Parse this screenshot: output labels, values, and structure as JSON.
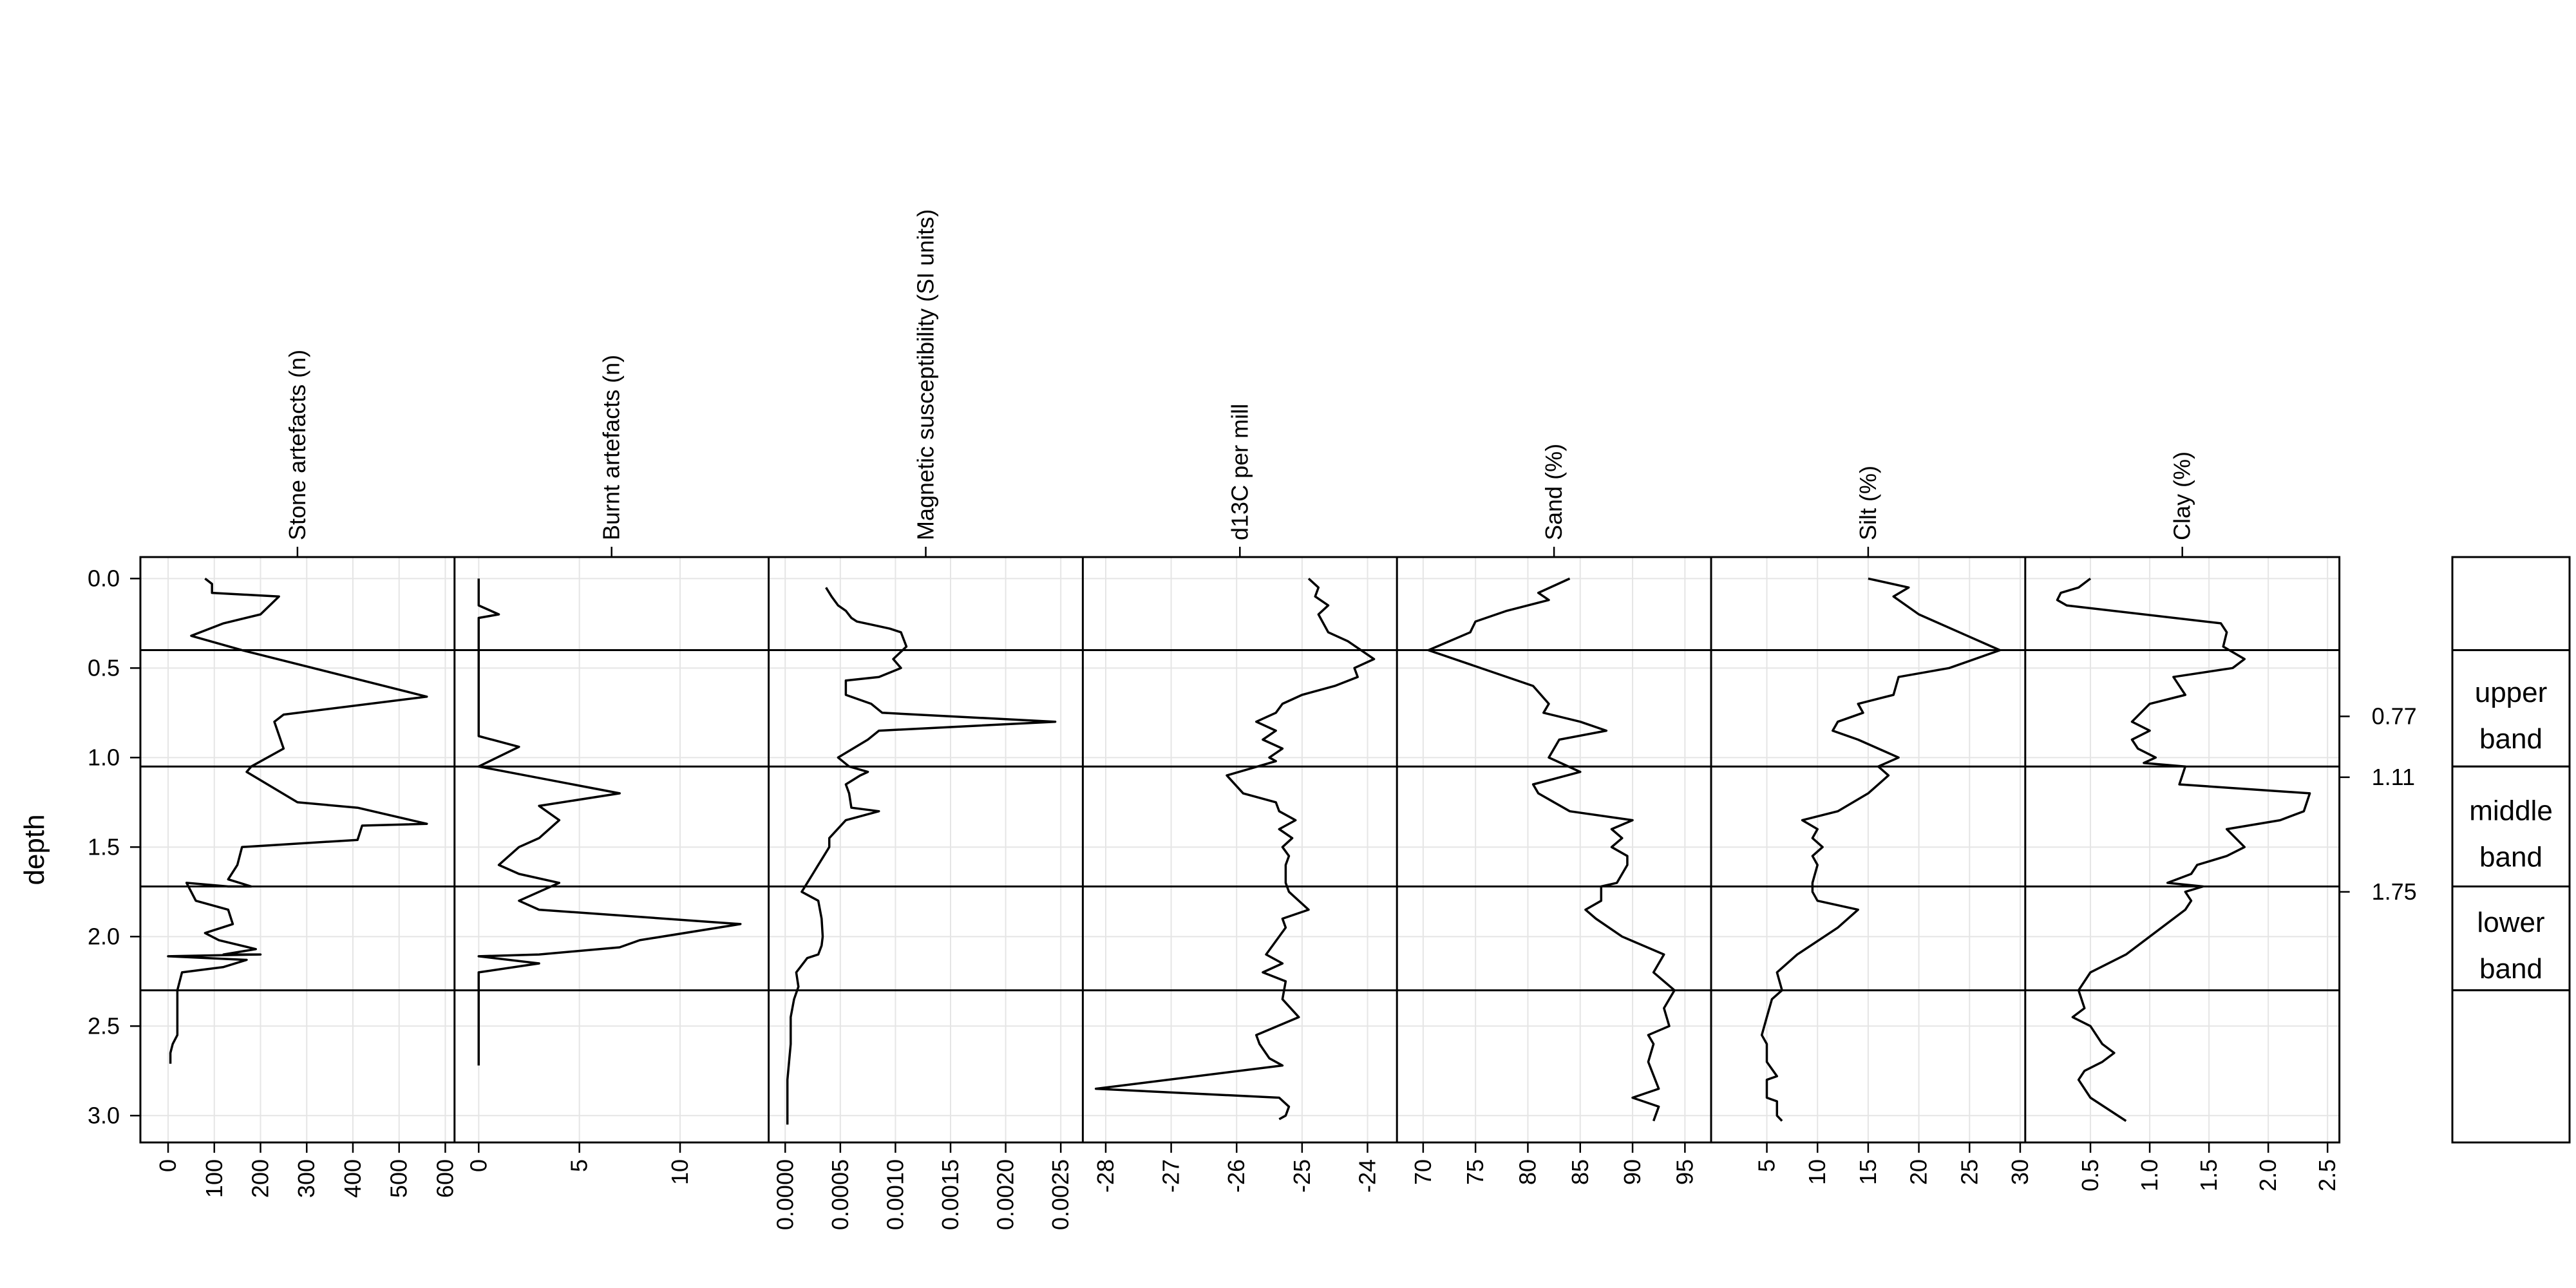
{
  "chart_data": {
    "type": "line",
    "layout": "stratigraphic depth profile (small multiples sharing depth axis)",
    "ylabel": "depth",
    "ylim": [
      3.15,
      -0.12
    ],
    "y_ticks": [
      0.0,
      0.5,
      1.0,
      1.5,
      2.0,
      2.5,
      3.0
    ],
    "y_tick_labels": [
      "0.0",
      "0.5",
      "1.0",
      "1.5",
      "2.0",
      "2.5",
      "3.0"
    ],
    "grid": true,
    "boundaries": [
      0.4,
      1.05,
      1.72,
      2.3
    ],
    "right_axis": {
      "ticks": [
        0.77,
        1.11,
        1.75
      ],
      "tick_labels": [
        "0.77",
        "1.11",
        "1.75"
      ]
    },
    "bands": [
      {
        "label_lines": [
          "",
          ""
        ],
        "from": -0.12,
        "to": 0.4
      },
      {
        "label_lines": [
          "upper",
          "band"
        ],
        "from": 0.4,
        "to": 1.05
      },
      {
        "label_lines": [
          "middle",
          "band"
        ],
        "from": 1.05,
        "to": 1.72
      },
      {
        "label_lines": [
          "lower",
          "band"
        ],
        "from": 1.72,
        "to": 2.3
      },
      {
        "label_lines": [
          "",
          ""
        ],
        "from": 2.3,
        "to": 3.15
      }
    ],
    "panels": [
      {
        "title": "Stone artefacts (n)",
        "xlim": [
          -60,
          620
        ],
        "x_ticks": [
          0,
          100,
          200,
          300,
          400,
          500,
          600
        ],
        "x_tick_labels": [
          "0",
          "100",
          "200",
          "300",
          "400",
          "500",
          "600"
        ],
        "x": [
          80,
          95,
          95,
          240,
          200,
          120,
          50,
          160,
          560,
          250,
          230,
          250,
          180,
          170,
          280,
          410,
          560,
          420,
          410,
          160,
          150,
          130,
          180,
          130,
          40,
          60,
          130,
          140,
          80,
          110,
          190,
          120,
          200,
          0,
          170,
          120,
          30,
          20,
          20,
          20,
          10,
          5,
          5
        ],
        "y": [
          0.0,
          0.03,
          0.08,
          0.1,
          0.2,
          0.25,
          0.32,
          0.4,
          0.66,
          0.76,
          0.8,
          0.95,
          1.05,
          1.08,
          1.25,
          1.28,
          1.37,
          1.38,
          1.46,
          1.5,
          1.6,
          1.68,
          1.72,
          1.72,
          1.7,
          1.8,
          1.85,
          1.93,
          1.98,
          2.02,
          2.07,
          2.1,
          2.1,
          2.11,
          2.13,
          2.17,
          2.2,
          2.3,
          2.45,
          2.55,
          2.6,
          2.65,
          2.71
        ]
      },
      {
        "title": "Burnt artefacts (n)",
        "xlim": [
          -1.2,
          14.4
        ],
        "x_ticks": [
          0,
          5,
          10
        ],
        "x_tick_labels": [
          "0",
          "5",
          "10"
        ],
        "x": [
          0,
          0,
          1,
          0,
          0,
          0,
          0,
          2,
          0,
          7,
          3,
          4,
          3,
          2,
          1,
          2,
          4,
          3,
          2,
          3,
          13,
          8,
          7,
          3,
          0,
          3,
          0,
          0,
          0,
          0
        ],
        "y": [
          0.0,
          0.15,
          0.2,
          0.22,
          0.4,
          0.87,
          0.88,
          0.94,
          1.05,
          1.2,
          1.27,
          1.35,
          1.45,
          1.5,
          1.6,
          1.65,
          1.7,
          1.75,
          1.8,
          1.85,
          1.93,
          2.02,
          2.06,
          2.1,
          2.11,
          2.15,
          2.2,
          2.3,
          2.5,
          2.72
        ]
      },
      {
        "title": "Magnetic susceptibility (SI units)",
        "xlim": [
          -0.00015,
          0.0027
        ],
        "x_ticks": [
          0.0,
          0.0005,
          0.001,
          0.0015,
          0.002,
          0.0025
        ],
        "x_tick_labels": [
          "0.0000",
          "0.0005",
          "0.0010",
          "0.0015",
          "0.0020",
          "0.0025"
        ],
        "x": [
          0.00037,
          0.00042,
          0.00048,
          0.00055,
          0.0006,
          0.00065,
          0.0008,
          0.00095,
          0.00105,
          0.0011,
          0.00098,
          0.00105,
          0.00085,
          0.00055,
          0.00055,
          0.00078,
          0.00088,
          0.00245,
          0.00085,
          0.00075,
          0.00048,
          0.00058,
          0.00075,
          0.00068,
          0.00055,
          0.00058,
          0.0006,
          0.00085,
          0.00055,
          0.0004,
          0.0004,
          0.00035,
          0.0003,
          0.00025,
          0.0002,
          0.00018,
          0.00015,
          0.0003,
          0.00033,
          0.00034,
          0.00033,
          0.0003,
          0.0002,
          0.0001,
          0.00012,
          8e-05,
          5e-05,
          5e-05,
          2e-05,
          2e-05
        ],
        "y": [
          0.05,
          0.1,
          0.15,
          0.18,
          0.22,
          0.24,
          0.26,
          0.28,
          0.3,
          0.38,
          0.45,
          0.5,
          0.55,
          0.57,
          0.65,
          0.7,
          0.75,
          0.8,
          0.85,
          0.9,
          1.0,
          1.05,
          1.08,
          1.1,
          1.15,
          1.2,
          1.28,
          1.3,
          1.35,
          1.45,
          1.5,
          1.55,
          1.6,
          1.65,
          1.7,
          1.72,
          1.75,
          1.8,
          1.9,
          2.0,
          2.05,
          2.1,
          2.12,
          2.2,
          2.28,
          2.35,
          2.45,
          2.6,
          2.8,
          3.05
        ]
      },
      {
        "title": "d13C per mill",
        "xlim": [
          -28.35,
          -23.55
        ],
        "x_ticks": [
          -28,
          -27,
          -26,
          -25,
          -24
        ],
        "x_tick_labels": [
          "-28",
          "-27",
          "-26",
          "-25",
          "-24"
        ],
        "x": [
          -24.9,
          -24.75,
          -24.8,
          -24.6,
          -24.75,
          -24.6,
          -24.3,
          -24.1,
          -23.9,
          -24.2,
          -24.15,
          -24.5,
          -25.0,
          -25.3,
          -25.4,
          -25.7,
          -25.4,
          -25.6,
          -25.3,
          -25.5,
          -25.4,
          -26.15,
          -25.9,
          -25.4,
          -25.35,
          -25.1,
          -25.35,
          -25.15,
          -25.3,
          -25.2,
          -25.25,
          -25.25,
          -25.2,
          -24.9,
          -25.3,
          -25.25,
          -25.55,
          -25.3,
          -25.6,
          -25.25,
          -25.3,
          -25.05,
          -25.7,
          -25.65,
          -25.5,
          -25.3,
          -28.15,
          -25.35,
          -25.2,
          -25.25,
          -25.35
        ],
        "y": [
          0.0,
          0.05,
          0.1,
          0.15,
          0.2,
          0.3,
          0.35,
          0.4,
          0.45,
          0.5,
          0.55,
          0.6,
          0.65,
          0.7,
          0.75,
          0.8,
          0.85,
          0.9,
          0.95,
          1.0,
          1.02,
          1.1,
          1.2,
          1.25,
          1.3,
          1.35,
          1.4,
          1.45,
          1.5,
          1.55,
          1.6,
          1.7,
          1.75,
          1.85,
          1.9,
          1.95,
          2.1,
          2.15,
          2.2,
          2.25,
          2.35,
          2.45,
          2.55,
          2.6,
          2.68,
          2.72,
          2.85,
          2.9,
          2.95,
          3.0,
          3.02
        ]
      },
      {
        "title": "Sand (%)",
        "xlim": [
          67.5,
          97.5
        ],
        "x_ticks": [
          70,
          75,
          80,
          85,
          90,
          95
        ],
        "x_tick_labels": [
          "70",
          "75",
          "80",
          "85",
          "90",
          "95"
        ],
        "x": [
          84,
          81,
          82,
          78,
          75,
          74.5,
          70.5,
          80.5,
          82,
          81.5,
          85,
          87.5,
          83,
          82,
          85,
          80.5,
          81,
          84,
          90,
          88,
          89,
          88,
          89.5,
          89.5,
          88.5,
          87,
          87,
          85.5,
          86.5,
          89,
          93,
          92,
          94,
          93,
          93.5,
          91.5,
          92,
          91.5,
          92.5,
          90,
          92.5,
          92
        ],
        "y": [
          0.0,
          0.08,
          0.12,
          0.18,
          0.24,
          0.3,
          0.4,
          0.6,
          0.7,
          0.75,
          0.8,
          0.85,
          0.9,
          1.0,
          1.08,
          1.15,
          1.2,
          1.3,
          1.35,
          1.4,
          1.45,
          1.5,
          1.55,
          1.6,
          1.7,
          1.72,
          1.8,
          1.85,
          1.9,
          2.0,
          2.1,
          2.2,
          2.3,
          2.4,
          2.5,
          2.55,
          2.6,
          2.7,
          2.85,
          2.9,
          2.95,
          3.03
        ]
      },
      {
        "title": "Silt (%)",
        "xlim": [
          -0.5,
          30.5
        ],
        "x_ticks": [
          5,
          10,
          15,
          20,
          25,
          30
        ],
        "x_tick_labels": [
          "5",
          "10",
          "15",
          "20",
          "25",
          "30"
        ],
        "x": [
          15,
          19,
          17.5,
          20,
          24,
          28,
          23,
          18,
          17.5,
          14,
          14.5,
          12,
          11.5,
          14,
          16,
          18,
          16,
          17,
          15,
          12,
          8.5,
          10,
          9.5,
          10.5,
          9.5,
          10,
          9.5,
          9.5,
          10,
          14,
          12,
          8,
          6,
          6.5,
          5.5,
          5,
          4.5,
          5,
          5,
          6,
          5,
          5,
          6,
          6,
          6.5
        ],
        "y": [
          0.0,
          0.05,
          0.1,
          0.2,
          0.3,
          0.4,
          0.5,
          0.55,
          0.65,
          0.7,
          0.75,
          0.8,
          0.85,
          0.9,
          0.95,
          1.0,
          1.05,
          1.1,
          1.2,
          1.3,
          1.35,
          1.4,
          1.45,
          1.5,
          1.55,
          1.6,
          1.7,
          1.75,
          1.8,
          1.85,
          1.95,
          2.1,
          2.2,
          2.3,
          2.35,
          2.45,
          2.55,
          2.6,
          2.7,
          2.78,
          2.8,
          2.9,
          2.92,
          3.0,
          3.03
        ]
      },
      {
        "title": "Clay (%)",
        "xlim": [
          -0.05,
          2.6
        ],
        "x_ticks": [
          0.5,
          1.0,
          1.5,
          2.0,
          2.5
        ],
        "x_tick_labels": [
          "0.5",
          "1.0",
          "1.5",
          "2.0",
          "2.5"
        ],
        "x": [
          0.5,
          0.4,
          0.25,
          0.22,
          0.3,
          1.6,
          1.65,
          1.62,
          1.8,
          1.7,
          1.2,
          1.3,
          1.0,
          0.85,
          1.0,
          0.85,
          0.9,
          1.05,
          0.95,
          1.3,
          1.25,
          2.35,
          2.3,
          2.1,
          1.65,
          1.8,
          1.65,
          1.4,
          1.35,
          1.15,
          1.45,
          1.3,
          1.35,
          1.3,
          1.0,
          0.8,
          0.5,
          0.4,
          0.45,
          0.35,
          0.5,
          0.6,
          0.7,
          0.6,
          0.45,
          0.4,
          0.5,
          0.8
        ],
        "y": [
          0.0,
          0.05,
          0.08,
          0.12,
          0.15,
          0.25,
          0.3,
          0.38,
          0.45,
          0.5,
          0.55,
          0.65,
          0.7,
          0.8,
          0.85,
          0.9,
          0.95,
          1.0,
          1.03,
          1.05,
          1.15,
          1.2,
          1.3,
          1.35,
          1.4,
          1.5,
          1.55,
          1.6,
          1.65,
          1.7,
          1.72,
          1.75,
          1.8,
          1.85,
          2.0,
          2.1,
          2.2,
          2.3,
          2.4,
          2.45,
          2.5,
          2.6,
          2.65,
          2.7,
          2.75,
          2.8,
          2.9,
          3.03
        ]
      }
    ]
  }
}
